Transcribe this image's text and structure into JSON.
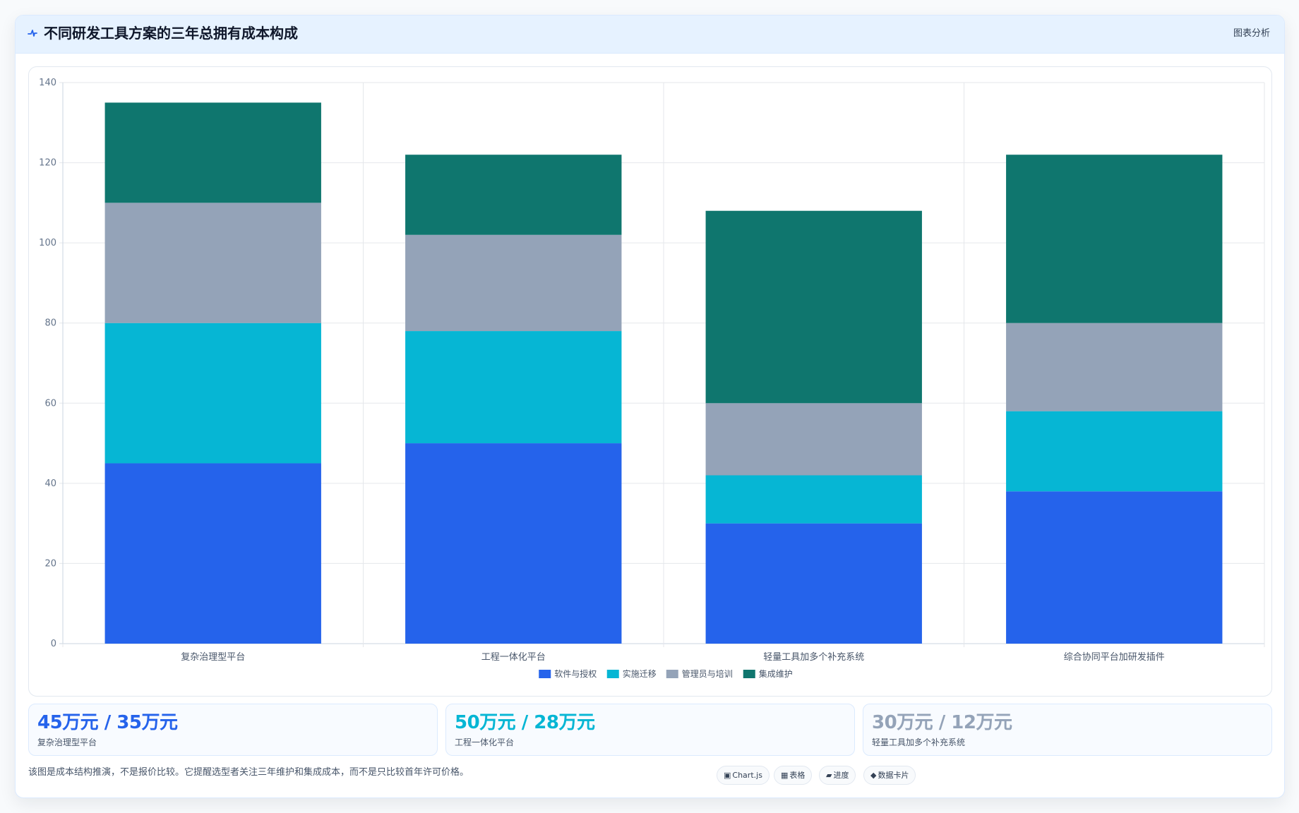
{
  "header": {
    "icon": "pulse-icon",
    "title": "不同研发工具方案的三年总拥有成本构成",
    "action_label": "图表分析"
  },
  "colors": {
    "blue": "#2563eb",
    "cyan": "#06b6d4",
    "slate": "#94a3b8",
    "teal": "#0f766e"
  },
  "chart_data": {
    "type": "bar",
    "stacked": true,
    "title": "",
    "xlabel": "",
    "ylabel": "",
    "ylim": [
      0,
      140
    ],
    "yticks": [
      0,
      20,
      40,
      60,
      80,
      100,
      120,
      140
    ],
    "grid": true,
    "legend_position": "bottom",
    "categories": [
      "复杂治理型平台",
      "工程一体化平台",
      "轻量工具加多个补充系统",
      "综合协同平台加研发插件"
    ],
    "series": [
      {
        "name": "软件与授权",
        "color": "#2563eb",
        "values": [
          45,
          50,
          30,
          38
        ]
      },
      {
        "name": "实施迁移",
        "color": "#06b6d4",
        "values": [
          35,
          28,
          12,
          20
        ]
      },
      {
        "name": "管理员与培训",
        "color": "#94a3b8",
        "values": [
          30,
          24,
          18,
          22
        ]
      },
      {
        "name": "集成维护",
        "color": "#0f766e",
        "values": [
          25,
          20,
          48,
          42
        ]
      }
    ]
  },
  "stats": [
    {
      "value": "45万元 / 35万元",
      "label": "复杂治理型平台",
      "color": "#2563eb"
    },
    {
      "value": "50万元 / 28万元",
      "label": "工程一体化平台",
      "color": "#06b6d4"
    },
    {
      "value": "30万元 / 12万元",
      "label": "轻量工具加多个补充系统",
      "color": "#94a3b8"
    }
  ],
  "note": "该图是成本结构推演，不是报价比较。它提醒选型者关注三年维护和集成成本，而不是只比较首年许可价格。",
  "chips": [
    {
      "icon": "▣",
      "label": "Chart.js"
    },
    {
      "icon": "▦",
      "label": "表格"
    },
    {
      "icon": "▰",
      "label": "进度"
    },
    {
      "icon": "◆",
      "label": "数据卡片"
    }
  ]
}
